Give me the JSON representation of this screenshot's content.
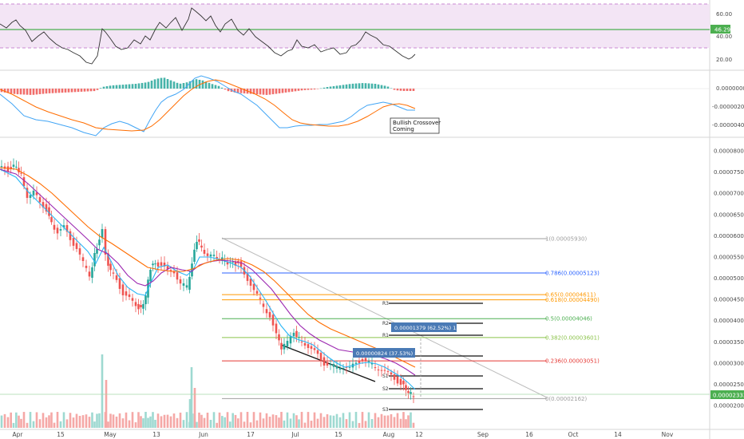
{
  "rsi_panel": {
    "ticks": [
      "60.00",
      "40.00",
      "20.00"
    ],
    "current_label": "46.29"
  },
  "macd_panel": {
    "ticks": [
      "0.00000000",
      "-0.00000200",
      "-0.00000400"
    ],
    "annotation_line1": "Bullish Crossover",
    "annotation_line2": "Coming"
  },
  "price_panel": {
    "ticks": [
      "0.00008000",
      "0.00007500",
      "0.00007000",
      "0.00006500",
      "0.00006000",
      "0.00005500",
      "0.00005000",
      "0.00004500",
      "0.00004000",
      "0.00003500",
      "0.00003000",
      "0.00002500",
      "0.00002000"
    ],
    "current_label": "0.00002333"
  },
  "fib_levels": [
    {
      "label": "1(0.00005930)",
      "value": 5.93e-05,
      "color": "#9e9e9e"
    },
    {
      "label": "0.786(0.00005123)",
      "value": 5.123e-05,
      "color": "#2962ff"
    },
    {
      "label": "0.65(0.00004611)",
      "value": 4.611e-05,
      "color": "#ff9800"
    },
    {
      "label": "0.618(0.00004490)",
      "value": 4.49e-05,
      "color": "#ff9800"
    },
    {
      "label": "0.5(0.00004046)",
      "value": 4.046e-05,
      "color": "#4caf50"
    },
    {
      "label": "0.382(0.00003601)",
      "value": 3.601e-05,
      "color": "#8bc34a"
    },
    {
      "label": "0.236(0.00003051)",
      "value": 3.051e-05,
      "color": "#e53935"
    },
    {
      "label": "0(0.00002162)",
      "value": 2.162e-05,
      "color": "#9e9e9e"
    }
  ],
  "pivots": [
    "R3",
    "R2",
    "R1",
    "P",
    "S1",
    "S2",
    "S3"
  ],
  "measure_labels": [
    "0.00001379 (62.52%) 1379",
    "0.00000824 (37.53%) 824"
  ],
  "x_axis": {
    "labels": [
      "Apr",
      "15",
      "May",
      "13",
      "Jun",
      "17",
      "Jul",
      "15",
      "Aug",
      "12",
      "Sep",
      "16",
      "Oct",
      "14",
      "Nov"
    ]
  },
  "colors": {
    "rsi_band": "#e1bee7",
    "rsi_line_marker": "#4caf50",
    "macd_line": "#42a5f5",
    "signal_line": "#ff6d00",
    "hist_pos": "#26a69a",
    "hist_neg": "#ef5350",
    "candle_up": "#26a69a",
    "candle_down": "#ef5350",
    "ema_fast": "#29b6f6",
    "ema_mid": "#9c27b0",
    "ema_slow": "#ff6d00"
  },
  "chart_data": {
    "type": "line",
    "price_approx": {
      "x": [
        "Apr",
        "15",
        "May",
        "13",
        "Jun",
        "17",
        "Jul",
        "15",
        "Aug",
        "12"
      ],
      "values": [
        7.65e-05,
        6.5e-05,
        5.2e-05,
        4.6e-05,
        5.5e-05,
        4.55e-05,
        3.45e-05,
        3.02e-05,
        2.7e-05,
        2.33e-05
      ]
    },
    "rsi_approx": [
      62,
      52,
      40,
      55,
      68,
      48,
      35,
      40,
      45,
      22
    ]
  }
}
